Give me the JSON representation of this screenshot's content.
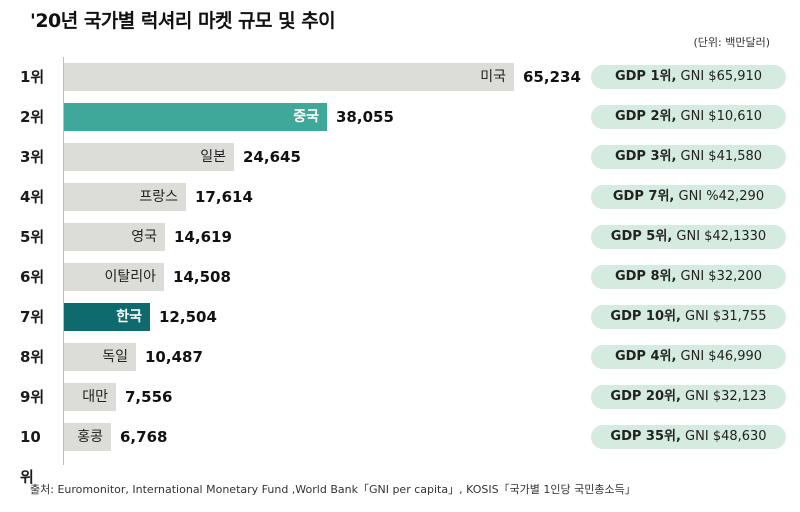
{
  "title": "'20년 국가별 럭셔리 마켓 규모 및 추이",
  "unit": "(단위: 백만달러)",
  "source": "출처: Euromonitor, International Monetary Fund ,World Bank「GNI per capita」, KOSIS「국가별 1인당 국민총소득」",
  "colors": {
    "bar_default": "#dcdcd8",
    "bar_china": "#3fa89a",
    "bar_korea": "#0e6a6c",
    "pill_bg": "#d6ebdf"
  },
  "chart_data": {
    "type": "bar",
    "orientation": "horizontal",
    "title": "'20년 국가별 럭셔리 마켓 규모 및 추이",
    "unit": "(단위: 백만달러)",
    "xlim": [
      0,
      65234
    ],
    "grid": false,
    "ranks": [
      "1위",
      "2위",
      "3위",
      "4위",
      "5위",
      "6위",
      "7위",
      "8위",
      "9위",
      "10위"
    ],
    "categories": [
      "미국",
      "중국",
      "일본",
      "프랑스",
      "영국",
      "이탈리아",
      "한국",
      "독일",
      "대만",
      "홍콩"
    ],
    "values": [
      65234,
      38055,
      24645,
      17614,
      14619,
      14508,
      12504,
      10487,
      7556,
      6768
    ],
    "value_labels": [
      "65,234",
      "38,055",
      "24,645",
      "17,614",
      "14,619",
      "14,508",
      "12,504",
      "10,487",
      "7,556",
      "6,768"
    ],
    "highlighted": [
      "중국",
      "한국"
    ],
    "gdp_ranks": [
      "GDP 1위,",
      "GDP 2위,",
      "GDP 3위,",
      "GDP 7위,",
      "GDP 5위,",
      "GDP 8위,",
      "GDP 10위,",
      "GDP 4위,",
      "GDP 20위,",
      "GDP 35위,"
    ],
    "gni_labels": [
      "GNI $65,910",
      "GNI $10,610",
      "GNI $41,580",
      "GNI %42,290",
      "GNI $42,1330",
      "GNI $32,200",
      "GNI $31,755",
      "GNI $46,990",
      "GNI $32,123",
      "GNI $48,630"
    ]
  }
}
